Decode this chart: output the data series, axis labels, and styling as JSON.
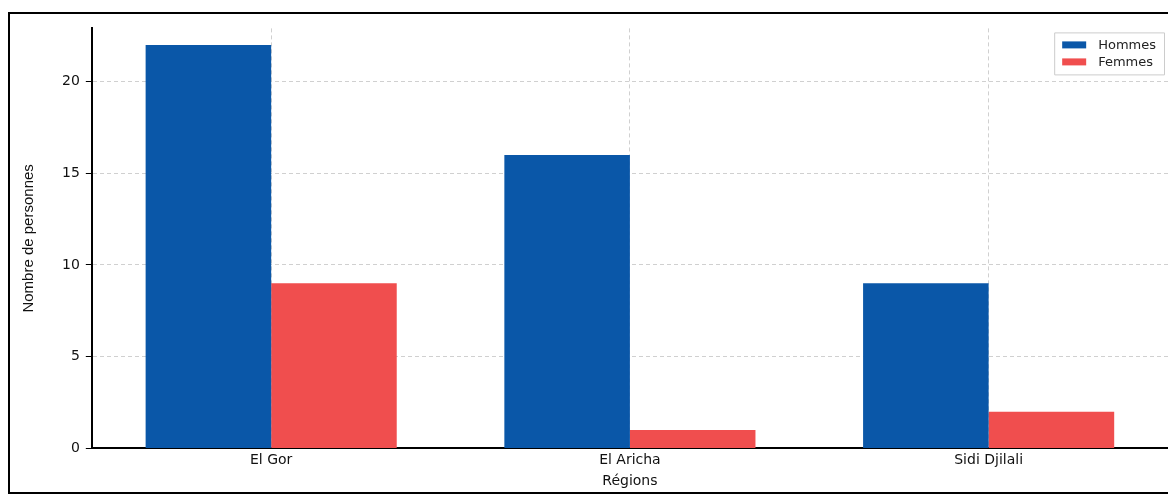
{
  "chart_data": {
    "type": "bar",
    "xlabel": "Régions",
    "ylabel": "Nombre de personnes",
    "categories": [
      "El Gor",
      "El Aricha",
      "Sidi Djilali"
    ],
    "series": [
      {
        "name": "Hommes",
        "color": "#0a57a8",
        "values": [
          22,
          16,
          9
        ]
      },
      {
        "name": "Femmes",
        "color": "#f04e4e",
        "values": [
          9,
          1,
          2
        ]
      }
    ],
    "ylim": [
      0,
      22.9
    ],
    "yticks": [
      0,
      5,
      10,
      15,
      20
    ],
    "grid": true,
    "legend": "top right"
  }
}
